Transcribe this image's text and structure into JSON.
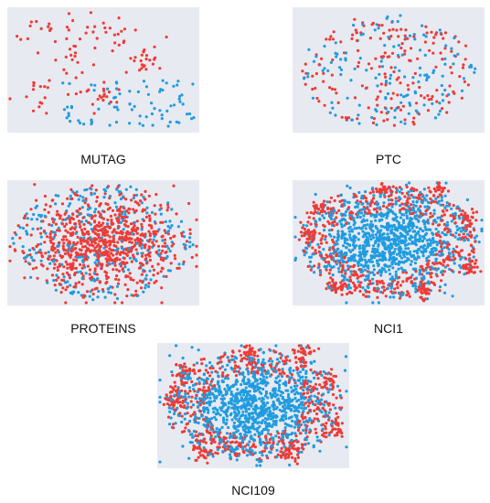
{
  "colors": {
    "class_a": "#ef3b36",
    "class_b": "#1f9ce0",
    "plot_bg": "#e8eaf1"
  },
  "chart_data": [
    {
      "type": "scatter",
      "title": "MUTAG",
      "grid": false,
      "legend": "none",
      "series": [
        {
          "count": 120,
          "pattern": "clustered-left"
        },
        {
          "count": 80,
          "pattern": "band-lower-right"
        }
      ]
    },
    {
      "type": "scatter",
      "title": "PTC",
      "grid": false,
      "legend": "none",
      "series": [
        {
          "count": 180,
          "pattern": "uniform"
        },
        {
          "count": 150,
          "pattern": "uniform"
        }
      ]
    },
    {
      "type": "scatter",
      "title": "PROTEINS",
      "grid": false,
      "legend": "none",
      "series": [
        {
          "count": 800,
          "pattern": "dense-core"
        },
        {
          "count": 300,
          "pattern": "sparse-ring"
        }
      ]
    },
    {
      "type": "scatter",
      "title": "NCI1",
      "grid": false,
      "legend": "none",
      "series": [
        {
          "count": 700,
          "pattern": "ring-and-clusters"
        },
        {
          "count": 1100,
          "pattern": "dense-core"
        }
      ]
    },
    {
      "type": "scatter",
      "title": "NCI109",
      "grid": false,
      "legend": "none",
      "series": [
        {
          "count": 700,
          "pattern": "ring-and-clusters"
        },
        {
          "count": 1100,
          "pattern": "dense-core"
        }
      ]
    }
  ]
}
